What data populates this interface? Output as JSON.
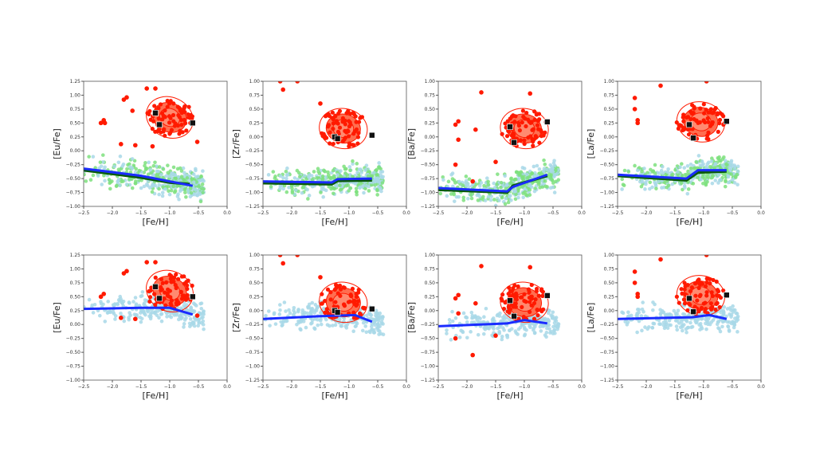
{
  "chart_data": [
    {
      "type": "scatter",
      "ylabel": "[Eu/Fe]",
      "xlabel": "[Fe/H]",
      "xlim": [
        -2.5,
        0
      ],
      "ylim": [
        -1.0,
        1.25
      ],
      "xticks": [
        "−2.5",
        "−2.0",
        "−1.5",
        "−1.0",
        "−0.5",
        "0.0"
      ],
      "yticks": [
        "−1.00",
        "−0.75",
        "−0.50",
        "−0.25",
        "0.00",
        "0.25",
        "0.50",
        "0.75",
        "1.00",
        "1.25"
      ],
      "cluster_center": [
        -1.0,
        0.6
      ],
      "squares": [
        [
          -1.25,
          0.68
        ],
        [
          -1.18,
          0.47
        ],
        [
          -0.6,
          0.5
        ]
      ],
      "outliers": [
        [
          -2.2,
          0.5
        ],
        [
          -2.15,
          0.55
        ],
        [
          -2.13,
          0.5
        ],
        [
          -1.8,
          0.92
        ],
        [
          -1.75,
          0.96
        ],
        [
          -1.65,
          0.72
        ],
        [
          -1.85,
          0.12
        ],
        [
          -1.6,
          0.1
        ],
        [
          -1.3,
          0.08
        ],
        [
          -1.4,
          1.12
        ],
        [
          -1.25,
          1.12
        ],
        [
          -0.52,
          0.16
        ]
      ],
      "blue_line": [
        [
          -2.5,
          -0.32
        ],
        [
          -1.5,
          -0.45
        ],
        [
          -0.6,
          -0.63
        ]
      ],
      "green_line": [
        [
          -2.5,
          -0.35
        ],
        [
          -1.5,
          -0.48
        ],
        [
          -1.0,
          -0.57
        ],
        [
          -0.65,
          -0.6
        ]
      ],
      "field": "green+lightblue"
    },
    {
      "type": "scatter",
      "ylabel": "[Zr/Fe]",
      "xlabel": "[Fe/H]",
      "xlim": [
        -2.5,
        0
      ],
      "ylim": [
        -1.25,
        1.0
      ],
      "xticks": [
        "−2.5",
        "−2.0",
        "−1.5",
        "−1.0",
        "−0.5",
        "0.0"
      ],
      "yticks": [
        "−1.25",
        "−1.00",
        "−0.75",
        "−0.50",
        "−0.25",
        "0.00",
        "0.25",
        "0.50",
        "0.75",
        "1.00"
      ],
      "cluster_center": [
        -1.1,
        0.15
      ],
      "squares": [
        [
          -1.25,
          0.0
        ],
        [
          -1.2,
          -0.03
        ],
        [
          -0.6,
          0.03
        ]
      ],
      "outliers": [
        [
          -2.2,
          1.0
        ],
        [
          -2.15,
          0.85
        ],
        [
          -1.9,
          1.0
        ],
        [
          -1.5,
          0.6
        ]
      ],
      "blue_line": [
        [
          -2.5,
          -0.8
        ],
        [
          -1.3,
          -0.82
        ],
        [
          -1.2,
          -0.76
        ],
        [
          -0.6,
          -0.75
        ]
      ],
      "green_line": [
        [
          -2.5,
          -0.83
        ],
        [
          -1.3,
          -0.85
        ],
        [
          -1.2,
          -0.79
        ],
        [
          -0.6,
          -0.78
        ]
      ],
      "field": "green+lightblue"
    },
    {
      "type": "scatter",
      "ylabel": "[Ba/Fe]",
      "xlabel": "[Fe/H]",
      "xlim": [
        -2.5,
        0
      ],
      "ylim": [
        -1.25,
        1.0
      ],
      "xticks": [
        "−2.5",
        "−2.0",
        "−1.5",
        "−1.0",
        "−0.5",
        "0.0"
      ],
      "yticks": [
        "−1.25",
        "−1.00",
        "−0.75",
        "−0.50",
        "−0.25",
        "0.00",
        "0.25",
        "0.50",
        "0.75",
        "1.00"
      ],
      "cluster_center": [
        -1.0,
        0.15
      ],
      "squares": [
        [
          -1.25,
          0.18
        ],
        [
          -1.18,
          -0.1
        ],
        [
          -0.6,
          0.27
        ]
      ],
      "outliers": [
        [
          -2.2,
          0.22
        ],
        [
          -2.15,
          0.28
        ],
        [
          -2.15,
          -0.05
        ],
        [
          -1.85,
          0.13
        ],
        [
          -1.75,
          0.8
        ],
        [
          -1.9,
          -0.8
        ],
        [
          -2.2,
          -0.5
        ],
        [
          -1.5,
          -0.45
        ],
        [
          -0.9,
          0.78
        ]
      ],
      "blue_line": [
        [
          -2.5,
          -0.92
        ],
        [
          -1.3,
          -0.98
        ],
        [
          -1.2,
          -0.9
        ],
        [
          -0.6,
          -0.68
        ]
      ],
      "green_line": [
        [
          -2.5,
          -0.95
        ],
        [
          -1.3,
          -1.0
        ],
        [
          -1.2,
          -0.88
        ],
        [
          -0.6,
          -0.7
        ]
      ],
      "field": "green+lightblue"
    },
    {
      "type": "scatter",
      "ylabel": "[La/Fe]",
      "xlabel": "[Fe/H]",
      "xlim": [
        -2.5,
        0
      ],
      "ylim": [
        -1.25,
        1.0
      ],
      "xticks": [
        "−2.5",
        "−2.0",
        "−1.5",
        "−1.0",
        "−0.5",
        "0.0"
      ],
      "yticks": [
        "−1.25",
        "−1.00",
        "−0.75",
        "−0.50",
        "−0.25",
        "0.00",
        "0.25",
        "0.50",
        "0.75",
        "1.00"
      ],
      "cluster_center": [
        -1.05,
        0.27
      ],
      "squares": [
        [
          -1.25,
          0.22
        ],
        [
          -1.18,
          -0.02
        ],
        [
          -0.6,
          0.28
        ]
      ],
      "outliers": [
        [
          -2.2,
          0.7
        ],
        [
          -2.2,
          0.5
        ],
        [
          -2.15,
          0.3
        ],
        [
          -2.15,
          0.25
        ],
        [
          -1.75,
          0.92
        ],
        [
          -0.95,
          1.0
        ]
      ],
      "blue_line": [
        [
          -2.5,
          -0.68
        ],
        [
          -1.3,
          -0.75
        ],
        [
          -1.1,
          -0.6
        ],
        [
          -0.6,
          -0.6
        ]
      ],
      "green_line": [
        [
          -2.5,
          -0.7
        ],
        [
          -1.3,
          -0.78
        ],
        [
          -1.1,
          -0.64
        ],
        [
          -0.6,
          -0.62
        ]
      ],
      "field": "green+lightblue"
    },
    {
      "type": "scatter",
      "ylabel": "[Eu/Fe]",
      "xlabel": "[Fe/H]",
      "xlim": [
        -2.5,
        0
      ],
      "ylim": [
        -1.0,
        1.25
      ],
      "xticks": [
        "−2.5",
        "−2.0",
        "−1.5",
        "−1.0",
        "−0.5",
        "0.0"
      ],
      "yticks": [
        "−1.00",
        "−0.75",
        "−0.50",
        "−0.25",
        "0.00",
        "0.25",
        "0.50",
        "0.75",
        "1.00",
        "1.25"
      ],
      "cluster_center": [
        -1.0,
        0.6
      ],
      "squares": [
        [
          -1.25,
          0.68
        ],
        [
          -1.18,
          0.47
        ],
        [
          -0.6,
          0.5
        ]
      ],
      "outliers": [
        [
          -2.2,
          0.5
        ],
        [
          -2.15,
          0.55
        ],
        [
          -1.8,
          0.92
        ],
        [
          -1.75,
          0.96
        ],
        [
          -1.85,
          0.12
        ],
        [
          -1.6,
          0.1
        ],
        [
          -1.4,
          1.12
        ],
        [
          -1.25,
          1.12
        ],
        [
          -0.52,
          0.16
        ]
      ],
      "blue_line": [
        [
          -2.5,
          0.28
        ],
        [
          -1.5,
          0.3
        ],
        [
          -1.0,
          0.3
        ],
        [
          -0.6,
          0.18
        ]
      ],
      "field": "lightblue"
    },
    {
      "type": "scatter",
      "ylabel": "[Zr/Fe]",
      "xlabel": "[Fe/H]",
      "xlim": [
        -2.5,
        0
      ],
      "ylim": [
        -1.25,
        1.0
      ],
      "xticks": [
        "−2.5",
        "−2.0",
        "−1.5",
        "−1.0",
        "−0.5",
        "0.0"
      ],
      "yticks": [
        "−1.25",
        "−1.00",
        "−0.75",
        "−0.50",
        "−0.25",
        "0.00",
        "0.25",
        "0.50",
        "0.75",
        "1.00"
      ],
      "cluster_center": [
        -1.1,
        0.15
      ],
      "squares": [
        [
          -1.25,
          0.0
        ],
        [
          -1.2,
          -0.03
        ],
        [
          -0.6,
          0.03
        ]
      ],
      "outliers": [
        [
          -2.2,
          1.0
        ],
        [
          -2.15,
          0.85
        ],
        [
          -1.9,
          1.0
        ],
        [
          -1.5,
          0.6
        ]
      ],
      "blue_line": [
        [
          -2.5,
          -0.15
        ],
        [
          -1.5,
          -0.1
        ],
        [
          -0.9,
          -0.08
        ],
        [
          -0.6,
          -0.2
        ]
      ],
      "field": "lightblue"
    },
    {
      "type": "scatter",
      "ylabel": "[Ba/Fe]",
      "xlabel": "[Fe/H]",
      "xlim": [
        -2.5,
        0
      ],
      "ylim": [
        -1.25,
        1.0
      ],
      "xticks": [
        "−2.5",
        "−2.0",
        "−1.5",
        "−1.0",
        "−0.5",
        "0.0"
      ],
      "yticks": [
        "−1.25",
        "−1.00",
        "−0.75",
        "−0.50",
        "−0.25",
        "0.00",
        "0.25",
        "0.50",
        "0.75",
        "1.00"
      ],
      "cluster_center": [
        -1.0,
        0.15
      ],
      "squares": [
        [
          -1.25,
          0.18
        ],
        [
          -1.18,
          -0.1
        ],
        [
          -0.6,
          0.27
        ]
      ],
      "outliers": [
        [
          -2.2,
          0.22
        ],
        [
          -2.15,
          0.28
        ],
        [
          -2.15,
          -0.05
        ],
        [
          -1.85,
          0.13
        ],
        [
          -1.75,
          0.8
        ],
        [
          -1.9,
          -0.8
        ],
        [
          -2.2,
          -0.5
        ],
        [
          -1.5,
          -0.45
        ],
        [
          -0.9,
          0.78
        ]
      ],
      "blue_line": [
        [
          -2.5,
          -0.28
        ],
        [
          -1.3,
          -0.23
        ],
        [
          -1.0,
          -0.17
        ],
        [
          -0.6,
          -0.23
        ]
      ],
      "field": "lightblue"
    },
    {
      "type": "scatter",
      "ylabel": "[La/Fe]",
      "xlabel": "[Fe/H]",
      "xlim": [
        -2.5,
        0
      ],
      "ylim": [
        -1.25,
        1.0
      ],
      "xticks": [
        "−2.5",
        "−2.0",
        "−1.5",
        "−1.0",
        "−0.5",
        "0.0"
      ],
      "yticks": [
        "−1.25",
        "−1.00",
        "−0.75",
        "−0.50",
        "−0.25",
        "0.00",
        "0.25",
        "0.50",
        "0.75",
        "1.00"
      ],
      "cluster_center": [
        -1.05,
        0.27
      ],
      "squares": [
        [
          -1.25,
          0.22
        ],
        [
          -1.18,
          -0.02
        ],
        [
          -0.6,
          0.28
        ]
      ],
      "outliers": [
        [
          -2.2,
          0.7
        ],
        [
          -2.2,
          0.5
        ],
        [
          -2.15,
          0.3
        ],
        [
          -2.15,
          0.25
        ],
        [
          -1.75,
          0.92
        ],
        [
          -0.95,
          1.0
        ]
      ],
      "blue_line": [
        [
          -2.5,
          -0.15
        ],
        [
          -1.2,
          -0.12
        ],
        [
          -0.9,
          -0.08
        ],
        [
          -0.6,
          -0.15
        ]
      ],
      "field": "lightblue"
    }
  ],
  "colors": {
    "cluster": "#ff1a00",
    "contour_fill": "#ff6e50",
    "field_blue": "#a8d8e8",
    "field_green": "#7ee07e",
    "model_blue": "#1a2cff",
    "model_green": "#0a5a0a",
    "square": "#111111"
  }
}
